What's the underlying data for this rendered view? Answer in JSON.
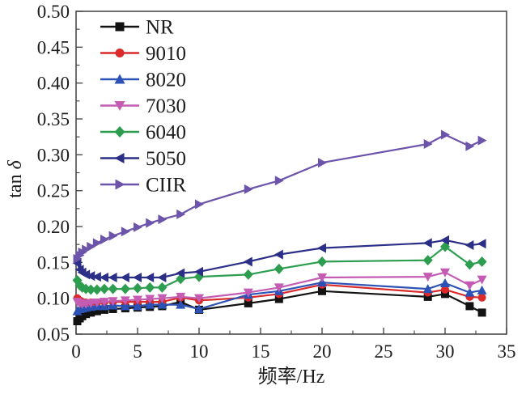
{
  "chart_data": {
    "type": "line",
    "title": "",
    "xlabel": "频率/Hz",
    "ylabel": "tan δ",
    "xlim": [
      0,
      35
    ],
    "ylim": [
      0.05,
      0.5
    ],
    "x_major_ticks": [
      0,
      5,
      10,
      15,
      20,
      25,
      30,
      35
    ],
    "x_minor_step": 2.5,
    "y_major_ticks": [
      0.05,
      0.1,
      0.15,
      0.2,
      0.25,
      0.3,
      0.35,
      0.4,
      0.45,
      0.5
    ],
    "y_minor_step": 0.025,
    "y_tick_labels": [
      "0.05",
      "0.10",
      "0.15",
      "0.20",
      "0.25",
      "0.30",
      "0.35",
      "0.40",
      "0.45",
      "0.50"
    ],
    "x_tick_labels": [
      "0",
      "5",
      "10",
      "15",
      "20",
      "25",
      "30",
      "35"
    ],
    "grid": false,
    "legend_position": "upper-left-inside",
    "frame_color": "#4a4a4a",
    "x": [
      0.1,
      0.3,
      0.5,
      0.8,
      1.2,
      1.7,
      2.3,
      3,
      4,
      5,
      6,
      7,
      8.5,
      10,
      14,
      16.5,
      20,
      28.6,
      30,
      32,
      33
    ],
    "series": [
      {
        "name": "NR",
        "color": "#121212",
        "marker": "square",
        "values": [
          0.068,
          0.072,
          0.075,
          0.078,
          0.08,
          0.082,
          0.084,
          0.085,
          0.086,
          0.087,
          0.088,
          0.089,
          0.095,
          0.084,
          0.093,
          0.099,
          0.11,
          0.102,
          0.106,
          0.089,
          0.08
        ]
      },
      {
        "name": "9010",
        "color": "#da2a2a",
        "marker": "circle",
        "values": [
          0.1,
          0.097,
          0.095,
          0.094,
          0.094,
          0.094,
          0.095,
          0.095,
          0.095,
          0.095,
          0.095,
          0.095,
          0.101,
          0.097,
          0.101,
          0.106,
          0.119,
          0.108,
          0.112,
          0.102,
          0.101
        ]
      },
      {
        "name": "8020",
        "color": "#2d52b5",
        "marker": "triangle-up",
        "values": [
          0.082,
          0.085,
          0.086,
          0.087,
          0.088,
          0.089,
          0.089,
          0.09,
          0.089,
          0.089,
          0.091,
          0.091,
          0.091,
          0.085,
          0.105,
          0.11,
          0.122,
          0.113,
          0.121,
          0.108,
          0.111
        ]
      },
      {
        "name": "7030",
        "color": "#c45cb4",
        "marker": "triangle-down",
        "values": [
          0.095,
          0.093,
          0.092,
          0.092,
          0.093,
          0.094,
          0.095,
          0.096,
          0.097,
          0.098,
          0.099,
          0.1,
          0.102,
          0.1,
          0.108,
          0.115,
          0.129,
          0.13,
          0.136,
          0.118,
          0.126
        ]
      },
      {
        "name": "6040",
        "color": "#2d9e4f",
        "marker": "diamond",
        "values": [
          0.125,
          0.118,
          0.115,
          0.113,
          0.112,
          0.112,
          0.113,
          0.113,
          0.113,
          0.114,
          0.115,
          0.115,
          0.127,
          0.13,
          0.133,
          0.141,
          0.151,
          0.153,
          0.172,
          0.147,
          0.151
        ]
      },
      {
        "name": "5050",
        "color": "#2b2f87",
        "marker": "triangle-left",
        "values": [
          0.149,
          0.14,
          0.136,
          0.133,
          0.131,
          0.13,
          0.129,
          0.129,
          0.129,
          0.129,
          0.129,
          0.129,
          0.135,
          0.137,
          0.151,
          0.161,
          0.17,
          0.177,
          0.181,
          0.174,
          0.176
        ]
      },
      {
        "name": "CIIR",
        "color": "#6c54ab",
        "marker": "triangle-right",
        "values": [
          0.155,
          0.16,
          0.164,
          0.168,
          0.172,
          0.177,
          0.182,
          0.187,
          0.193,
          0.199,
          0.205,
          0.21,
          0.217,
          0.231,
          0.252,
          0.264,
          0.289,
          0.315,
          0.328,
          0.312,
          0.32
        ]
      }
    ]
  }
}
